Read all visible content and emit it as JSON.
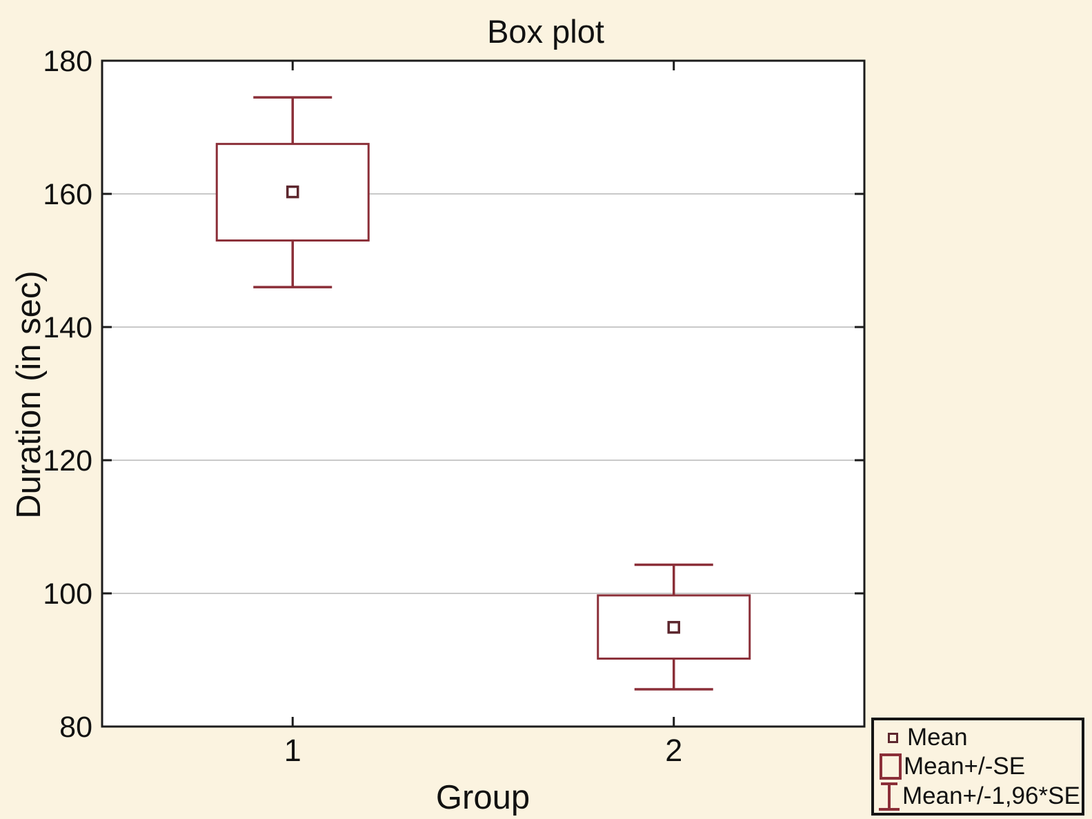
{
  "figure": {
    "background_color": "#fbf3e0",
    "plot_background_color": "#ffffff",
    "axis_color": "#1c1c1c",
    "grid_color": "#c9c9c9",
    "series_color": "#8b2f38",
    "mean_marker_color": "#5d272e",
    "text_color": "#111111"
  },
  "chart_data": {
    "type": "box",
    "title": "Box plot",
    "xlabel": "Group",
    "ylabel": "Duration (in sec)",
    "ylim": [
      80,
      180
    ],
    "yticks": [
      80,
      100,
      120,
      140,
      160,
      180
    ],
    "grid": "horizontal",
    "categories": [
      "1",
      "2"
    ],
    "series": [
      {
        "group": "1",
        "mean": 160.3,
        "se_low": 153.0,
        "se_high": 167.5,
        "ci_low": 146.0,
        "ci_high": 174.5
      },
      {
        "group": "2",
        "mean": 94.9,
        "se_low": 90.2,
        "se_high": 99.7,
        "ci_low": 85.6,
        "ci_high": 104.3
      }
    ],
    "legend": [
      {
        "icon": "mean-marker-icon",
        "label": "Mean"
      },
      {
        "icon": "se-box-icon",
        "label": "Mean+/-SE"
      },
      {
        "icon": "ci-whisker-icon",
        "label": "Mean+/-1,96*SE"
      }
    ],
    "legend_position": "bottom-right"
  }
}
